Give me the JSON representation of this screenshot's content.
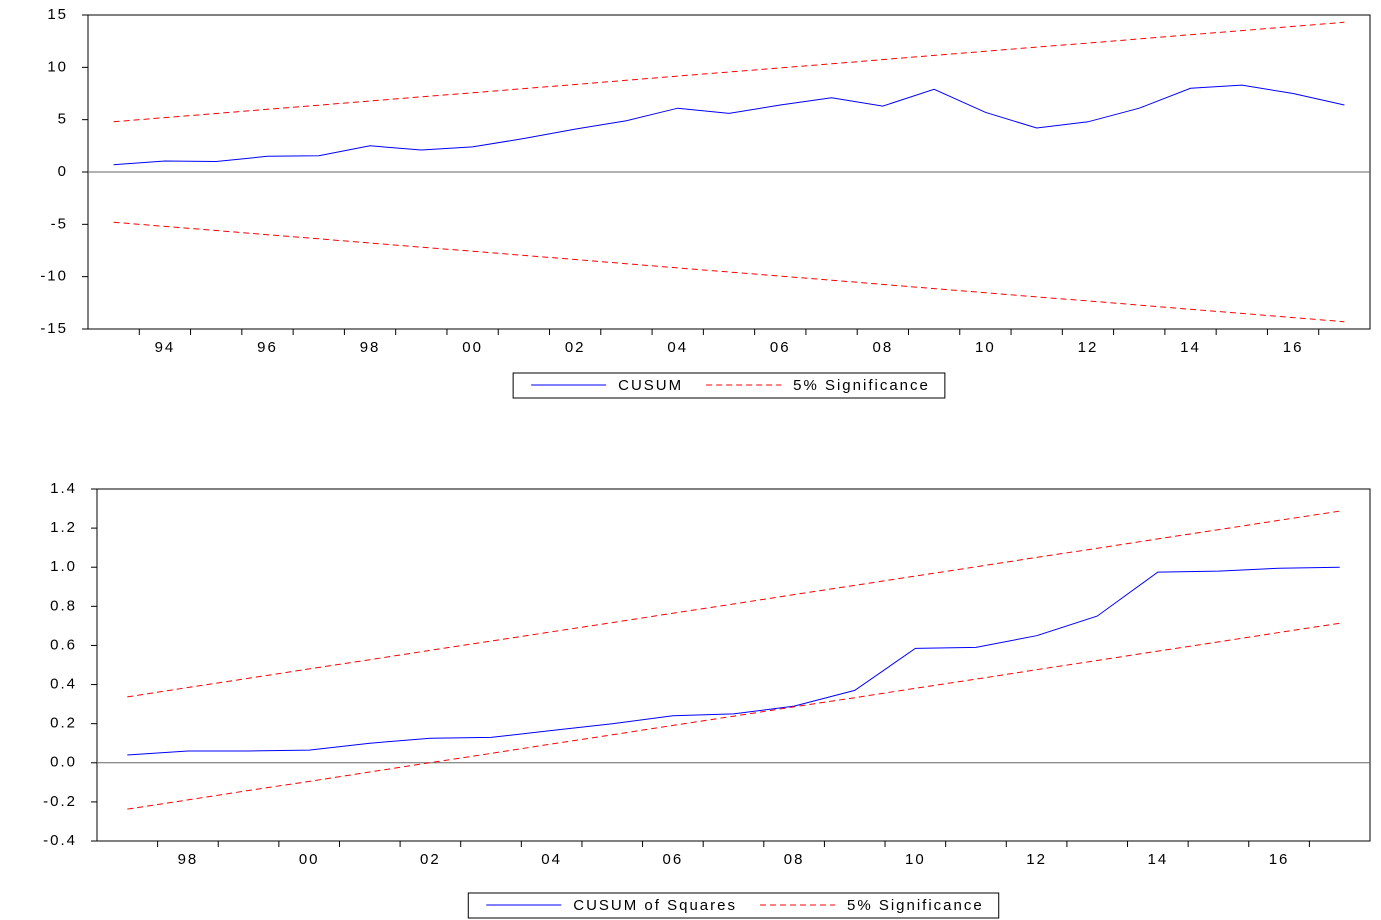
{
  "chart_data": [
    {
      "type": "line",
      "categories": [
        null,
        "94",
        null,
        "96",
        null,
        "98",
        null,
        "00",
        null,
        "02",
        null,
        "04",
        null,
        "06",
        null,
        "08",
        null,
        "10",
        null,
        "12",
        null,
        "14",
        null,
        "16",
        null
      ],
      "series": [
        {
          "name": "CUSUM",
          "color": "#0000ff",
          "values": [
            0.7,
            1.05,
            1.0,
            1.5,
            1.55,
            2.5,
            2.1,
            2.4,
            3.2,
            4.1,
            4.9,
            6.1,
            5.6,
            6.4,
            7.1,
            6.3,
            7.9,
            5.7,
            4.2,
            4.8,
            6.1,
            8.0,
            8.3,
            7.5,
            6.4
          ]
        },
        {
          "name": "5% Significance",
          "color": "#ff0000",
          "dash": true,
          "values": [
            4.8,
            5.2,
            5.59,
            5.99,
            6.38,
            6.78,
            7.18,
            7.57,
            7.97,
            8.36,
            8.76,
            9.16,
            9.55,
            9.95,
            10.34,
            10.74,
            11.14,
            11.53,
            11.93,
            12.32,
            12.72,
            13.12,
            13.51,
            13.91,
            14.3
          ]
        },
        {
          "color": "#ff0000",
          "dash": true,
          "values": [
            -4.8,
            -5.2,
            -5.59,
            -5.99,
            -6.38,
            -6.78,
            -7.18,
            -7.57,
            -7.97,
            -8.36,
            -8.76,
            -9.16,
            -9.55,
            -9.95,
            -10.34,
            -10.74,
            -11.14,
            -11.53,
            -11.93,
            -12.32,
            -12.72,
            -13.12,
            -13.51,
            -13.91,
            -14.3
          ]
        }
      ],
      "ylim": [
        -15,
        15
      ],
      "yticks": [
        -15,
        -10,
        -5,
        0,
        5,
        10,
        15
      ],
      "zero_line": true
    },
    {
      "type": "line",
      "categories": [
        null,
        "98",
        null,
        "00",
        null,
        "02",
        null,
        "04",
        null,
        "06",
        null,
        "08",
        null,
        "10",
        null,
        "12",
        null,
        "14",
        null,
        "16",
        null
      ],
      "series": [
        {
          "name": "CUSUM of Squares",
          "color": "#0000ff",
          "values": [
            0.04,
            0.06,
            0.06,
            0.065,
            0.1,
            0.125,
            0.13,
            0.165,
            0.2,
            0.24,
            0.25,
            0.29,
            0.37,
            0.585,
            0.59,
            0.65,
            0.75,
            0.975,
            0.98,
            0.995,
            1.0
          ]
        },
        {
          "name": "5% Significance",
          "color": "#ff0000",
          "dash": true,
          "values": [
            0.337,
            0.385,
            0.432,
            0.48,
            0.527,
            0.575,
            0.622,
            0.67,
            0.717,
            0.765,
            0.812,
            0.86,
            0.907,
            0.955,
            1.002,
            1.05,
            1.097,
            1.145,
            1.192,
            1.24,
            1.287
          ]
        },
        {
          "color": "#ff0000",
          "dash": true,
          "values": [
            -0.237,
            -0.19,
            -0.142,
            -0.095,
            -0.047,
            0.001,
            0.048,
            0.096,
            0.143,
            0.191,
            0.238,
            0.286,
            0.333,
            0.381,
            0.428,
            0.476,
            0.523,
            0.571,
            0.618,
            0.666,
            0.713
          ]
        }
      ],
      "ylim": [
        -0.4,
        1.4
      ],
      "yticks": [
        -0.4,
        -0.2,
        {
          "value": 0,
          "label": "0.0"
        },
        0.2,
        0.4,
        0.6,
        0.8,
        {
          "value": 1,
          "label": "1.0"
        },
        1.2,
        1.4
      ],
      "zero_line": true
    }
  ]
}
